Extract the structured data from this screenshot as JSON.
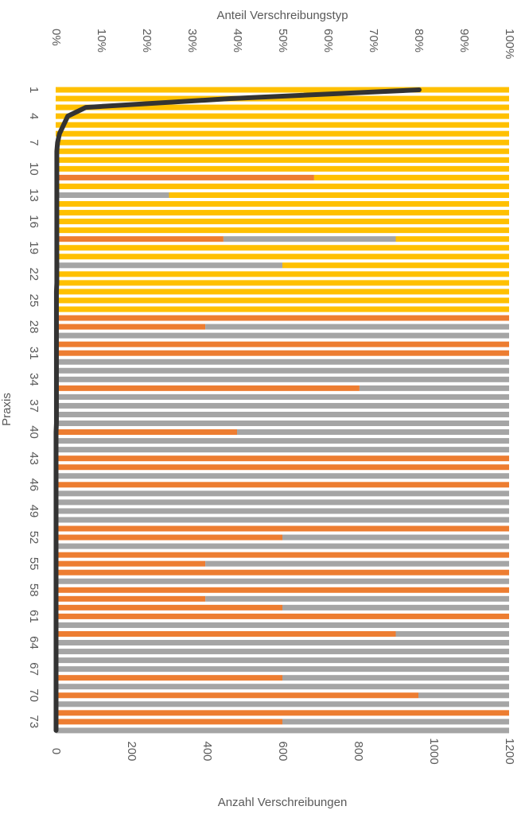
{
  "chart_data": {
    "type": "bar",
    "orientation": "horizontal",
    "stacked": "percent",
    "title": "Anteil  Verschreibungstyp",
    "x2_label": "Anzahl Verschreibungen",
    "y_label": "Praxis",
    "categories": [
      "1",
      null,
      null,
      "4",
      null,
      null,
      "7",
      null,
      null,
      "10",
      null,
      null,
      "13",
      null,
      null,
      "16",
      null,
      null,
      "19",
      null,
      null,
      "22",
      null,
      null,
      "25",
      null,
      null,
      "28",
      null,
      null,
      "31",
      null,
      null,
      "34",
      null,
      null,
      "37",
      null,
      null,
      "40",
      null,
      null,
      "43",
      null,
      null,
      "46",
      null,
      null,
      "49",
      null,
      null,
      "52",
      null,
      null,
      "55",
      null,
      null,
      "58",
      null,
      null,
      "61",
      null,
      null,
      "64",
      null,
      null,
      "67",
      null,
      null,
      "70",
      null,
      null,
      "73",
      null
    ],
    "xlim": [
      0,
      100
    ],
    "xticks": [
      {
        "value": 0,
        "label": "0%"
      },
      {
        "value": 10,
        "label": "10%"
      },
      {
        "value": 20,
        "label": "20%"
      },
      {
        "value": 30,
        "label": "30%"
      },
      {
        "value": 40,
        "label": "40%"
      },
      {
        "value": 50,
        "label": "50%"
      },
      {
        "value": 60,
        "label": "60%"
      },
      {
        "value": 70,
        "label": "70%"
      },
      {
        "value": 80,
        "label": "80%"
      },
      {
        "value": 90,
        "label": "90%"
      },
      {
        "value": 100,
        "label": "100%"
      }
    ],
    "x2lim": [
      0,
      1200
    ],
    "x2ticks": [
      0,
      200,
      400,
      600,
      800,
      1000,
      1200
    ],
    "series": [
      {
        "color": "#ed7d31",
        "values": [
          0,
          0,
          0,
          0,
          0,
          0,
          0,
          0,
          0,
          0,
          57,
          0,
          0,
          0,
          0,
          0,
          0,
          37,
          0,
          0,
          0,
          0,
          0,
          0,
          0,
          0,
          100,
          33,
          0,
          100,
          100,
          0,
          0,
          0,
          67,
          0,
          0,
          0,
          0,
          40,
          0,
          0,
          100,
          100,
          0,
          100,
          0,
          0,
          0,
          0,
          100,
          50,
          0,
          100,
          33,
          100,
          0,
          100,
          33,
          50,
          100,
          0,
          75,
          0,
          0,
          0,
          0,
          50,
          0,
          80,
          0,
          100,
          50,
          0
        ]
      },
      {
        "color": "#a5a5a5",
        "values": [
          0,
          0,
          0,
          0,
          0,
          0,
          0,
          0,
          0,
          0,
          0,
          0,
          25,
          0,
          0,
          0,
          0,
          38,
          0,
          0,
          50,
          0,
          0,
          0,
          0,
          0,
          0,
          67,
          100,
          0,
          0,
          100,
          100,
          100,
          33,
          100,
          100,
          100,
          100,
          60,
          100,
          100,
          0,
          0,
          100,
          0,
          100,
          100,
          100,
          100,
          0,
          50,
          100,
          0,
          67,
          0,
          100,
          0,
          67,
          50,
          0,
          100,
          25,
          100,
          100,
          100,
          100,
          50,
          100,
          20,
          100,
          0,
          50,
          100
        ]
      },
      {
        "color": "#ffc000",
        "values": [
          100,
          100,
          100,
          100,
          100,
          100,
          100,
          100,
          100,
          100,
          43,
          100,
          75,
          100,
          100,
          100,
          100,
          25,
          100,
          100,
          50,
          100,
          100,
          100,
          100,
          100,
          0,
          0,
          0,
          0,
          0,
          0,
          0,
          0,
          0,
          0,
          0,
          0,
          0,
          0,
          0,
          0,
          0,
          0,
          0,
          0,
          0,
          0,
          0,
          0,
          0,
          0,
          0,
          0,
          0,
          0,
          0,
          0,
          0,
          0,
          0,
          0,
          0,
          0,
          0,
          0,
          0,
          0,
          0,
          0,
          0,
          0,
          0,
          0
        ]
      },
      {
        "type": "line",
        "axis": "x2",
        "color": "#333333",
        "values": [
          962,
          463,
          80,
          32,
          21,
          10,
          5,
          3,
          3,
          3,
          3,
          3,
          3,
          3,
          3,
          3,
          3,
          3,
          3,
          3,
          3,
          3,
          3,
          2,
          2,
          2,
          2,
          2,
          2,
          2,
          2,
          2,
          2,
          2,
          2,
          2,
          2,
          2,
          2,
          1,
          1,
          1,
          1,
          1,
          1,
          1,
          1,
          1,
          1,
          1,
          1,
          1,
          1,
          1,
          1,
          1,
          1,
          1,
          1,
          1,
          1,
          1,
          1,
          1,
          1,
          1,
          1,
          1,
          1,
          1,
          1,
          1,
          1,
          1
        ]
      }
    ]
  }
}
